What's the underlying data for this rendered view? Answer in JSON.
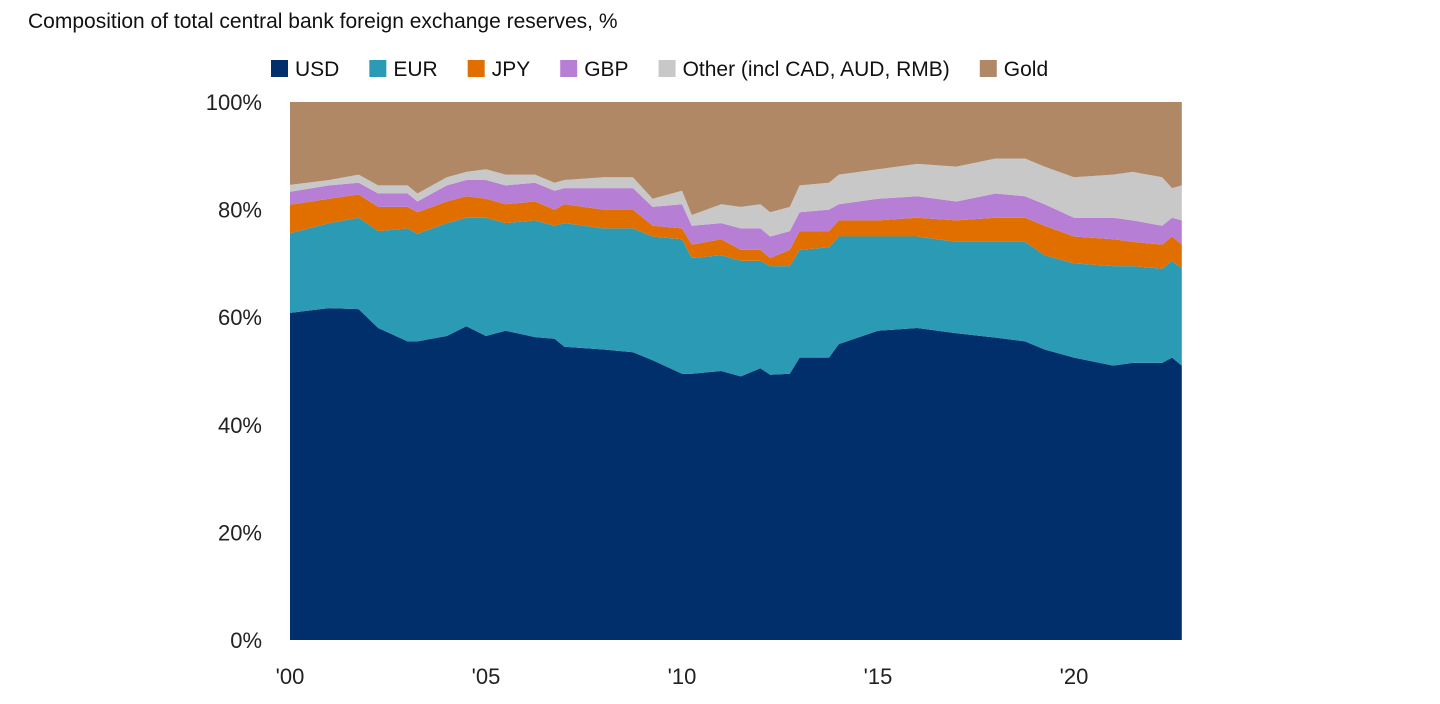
{
  "chart_data": {
    "type": "area",
    "stacked": true,
    "title": "Composition of total central bank foreign exchange reserves, %",
    "xlabel": "",
    "ylabel": "",
    "ylim": [
      0,
      100
    ],
    "xlim": [
      2000,
      2022.75
    ],
    "y_ticks": [
      "0%",
      "20%",
      "40%",
      "60%",
      "80%",
      "100%"
    ],
    "x_ticks": [
      {
        "value": 2000,
        "label": "'00"
      },
      {
        "value": 2005,
        "label": "'05"
      },
      {
        "value": 2010,
        "label": "'10"
      },
      {
        "value": 2015,
        "label": "'15"
      },
      {
        "value": 2020,
        "label": "'20"
      }
    ],
    "grid": false,
    "legend_position": "top",
    "x": [
      2000.0,
      2001.0,
      2001.75,
      2002.25,
      2003.0,
      2003.25,
      2004.0,
      2004.5,
      2005.0,
      2005.5,
      2006.25,
      2006.75,
      2007.0,
      2008.0,
      2008.75,
      2009.25,
      2010.0,
      2010.25,
      2011.0,
      2011.5,
      2012.0,
      2012.25,
      2012.75,
      2013.0,
      2013.75,
      2014.0,
      2015.0,
      2016.0,
      2017.0,
      2018.0,
      2018.75,
      2019.25,
      2020.0,
      2021.0,
      2021.5,
      2022.25,
      2022.5,
      2022.75
    ],
    "series": [
      {
        "name": "USD",
        "color": "#002f6c",
        "values": [
          60.8,
          61.7,
          61.5,
          58.0,
          55.5,
          55.5,
          56.5,
          58.3,
          56.5,
          57.5,
          56.3,
          56.0,
          54.5,
          54.0,
          53.5,
          52.0,
          49.5,
          49.5,
          50.0,
          49.0,
          50.5,
          49.3,
          49.5,
          52.5,
          52.5,
          55.0,
          57.5,
          58.0,
          57.0,
          56.2,
          55.5,
          54.0,
          52.5,
          51.0,
          51.5,
          51.5,
          52.5,
          51.0
        ]
      },
      {
        "name": "EUR",
        "color": "#2b9ab5",
        "values": [
          14.8,
          15.8,
          17.0,
          18.0,
          21.0,
          20.0,
          21.0,
          20.2,
          22.0,
          20.0,
          21.7,
          21.0,
          23.0,
          22.5,
          23.0,
          23.0,
          25.0,
          21.5,
          21.5,
          21.5,
          20.0,
          20.2,
          20.0,
          20.0,
          20.5,
          20.0,
          17.5,
          17.0,
          17.0,
          17.8,
          18.5,
          17.5,
          17.5,
          18.5,
          18.0,
          17.5,
          18.0,
          18.0
        ]
      },
      {
        "name": "JPY",
        "color": "#e06f00",
        "values": [
          5.3,
          4.5,
          4.3,
          4.5,
          4.0,
          4.0,
          4.0,
          4.0,
          3.5,
          3.5,
          3.5,
          3.0,
          3.5,
          3.5,
          3.5,
          2.0,
          2.0,
          2.5,
          3.0,
          2.0,
          2.0,
          1.5,
          3.0,
          3.5,
          3.0,
          3.0,
          3.0,
          3.5,
          4.0,
          4.5,
          4.5,
          5.5,
          5.0,
          5.0,
          4.5,
          4.5,
          4.5,
          4.5
        ]
      },
      {
        "name": "GBP",
        "color": "#b77ed6",
        "values": [
          2.4,
          2.5,
          2.2,
          2.5,
          2.5,
          2.0,
          3.0,
          3.0,
          3.5,
          3.5,
          3.5,
          3.5,
          3.0,
          4.0,
          4.0,
          3.5,
          4.5,
          3.5,
          3.0,
          4.0,
          4.0,
          4.0,
          3.5,
          3.5,
          4.0,
          3.0,
          4.0,
          4.0,
          3.5,
          4.5,
          4.0,
          4.0,
          3.5,
          4.0,
          4.0,
          3.5,
          3.5,
          4.5
        ]
      },
      {
        "name": "Other (incl CAD, AUD, RMB)",
        "color": "#c8c8c8",
        "values": [
          1.3,
          1.0,
          1.5,
          1.5,
          1.5,
          1.5,
          1.5,
          1.5,
          2.0,
          2.0,
          1.5,
          1.5,
          1.5,
          2.0,
          2.0,
          1.5,
          2.5,
          2.0,
          3.5,
          4.0,
          4.5,
          4.5,
          4.5,
          5.0,
          5.0,
          5.5,
          5.5,
          6.0,
          6.5,
          6.5,
          7.0,
          7.0,
          7.5,
          8.0,
          9.0,
          9.0,
          5.5,
          6.5
        ]
      },
      {
        "name": "Gold",
        "color": "#b08866",
        "values": [
          15.4,
          14.5,
          13.5,
          15.5,
          15.5,
          17.0,
          14.0,
          13.0,
          12.5,
          13.5,
          13.5,
          15.0,
          14.5,
          14.0,
          14.0,
          18.0,
          16.5,
          21.0,
          19.0,
          19.5,
          19.0,
          20.5,
          19.5,
          15.5,
          15.0,
          13.5,
          12.5,
          11.5,
          12.0,
          10.5,
          10.5,
          12.0,
          14.0,
          13.5,
          13.0,
          14.0,
          16.0,
          15.5
        ]
      }
    ]
  }
}
